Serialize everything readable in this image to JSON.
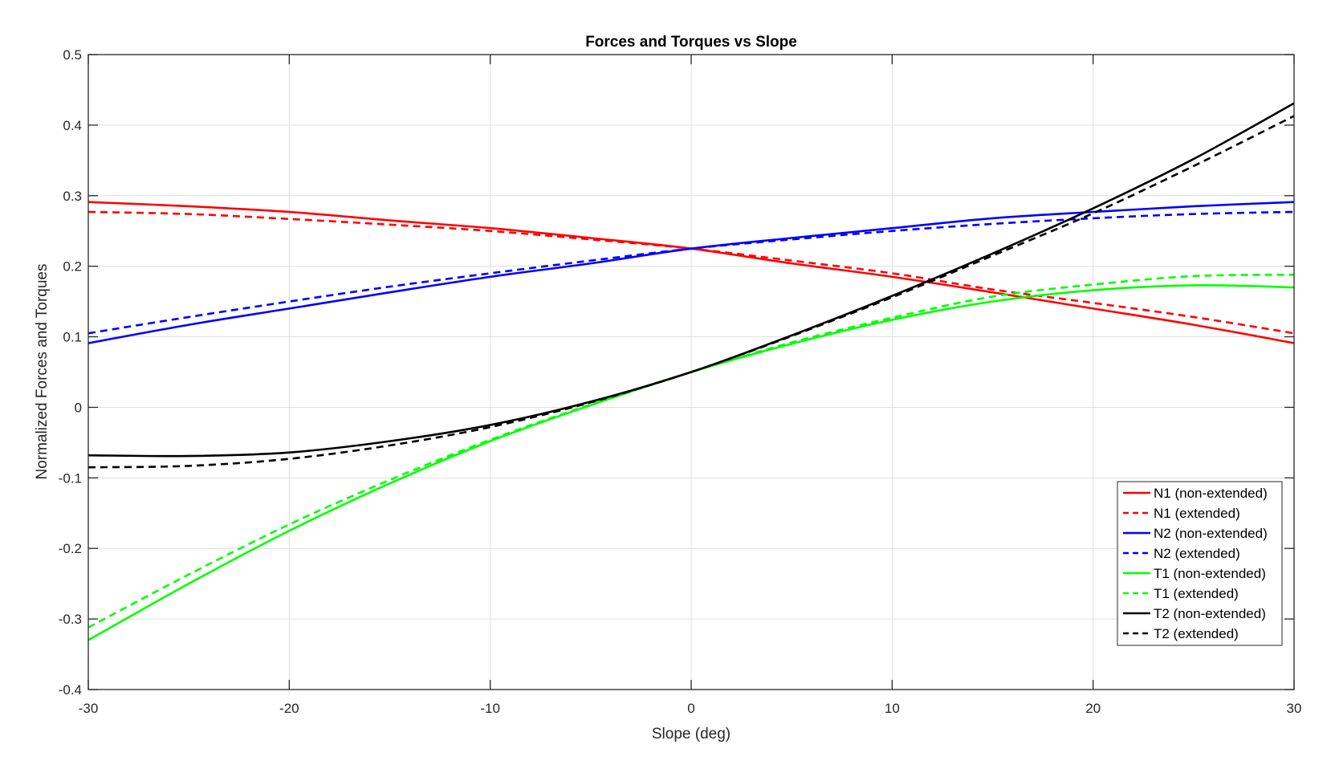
{
  "chart_data": {
    "type": "line",
    "title": "Forces and Torques vs Slope",
    "xlabel": "Slope (deg)",
    "ylabel": "Normalized Forces and Torques",
    "xlim": [
      -30,
      30
    ],
    "ylim": [
      -0.4,
      0.5
    ],
    "xticks": [
      -30,
      -20,
      -10,
      0,
      10,
      20,
      30
    ],
    "xtick_labels": [
      "-30",
      "-20",
      "-10",
      "0",
      "10",
      "20",
      "30"
    ],
    "yticks": [
      -0.4,
      -0.3,
      -0.2,
      -0.1,
      0,
      0.1,
      0.2,
      0.3,
      0.4,
      0.5
    ],
    "ytick_labels": [
      "-0.4",
      "-0.3",
      "-0.2",
      "-0.1",
      "0",
      "0.1",
      "0.2",
      "0.3",
      "0.4",
      "0.5"
    ],
    "grid": true,
    "legend_position": "bottom-right",
    "x": [
      -30,
      -25,
      -20,
      -15,
      -10,
      -5,
      0,
      5,
      10,
      15,
      20,
      25,
      30
    ],
    "series": [
      {
        "name": "N1 (non-extended)",
        "color": "#ff0000",
        "dash": "solid",
        "values": [
          0.291,
          0.285,
          0.277,
          0.265,
          0.254,
          0.24,
          0.225,
          0.204,
          0.185,
          0.163,
          0.14,
          0.117,
          0.091
        ]
      },
      {
        "name": "N1 (extended)",
        "color": "#ff0000",
        "dash": "dashed",
        "values": [
          0.277,
          0.274,
          0.267,
          0.259,
          0.25,
          0.238,
          0.225,
          0.208,
          0.19,
          0.167,
          0.148,
          0.128,
          0.105
        ]
      },
      {
        "name": "N2 (non-extended)",
        "color": "#0000ff",
        "dash": "solid",
        "values": [
          0.091,
          0.117,
          0.14,
          0.163,
          0.185,
          0.204,
          0.225,
          0.24,
          0.254,
          0.268,
          0.277,
          0.285,
          0.291
        ]
      },
      {
        "name": "N2 (extended)",
        "color": "#0000ff",
        "dash": "dashed",
        "values": [
          0.105,
          0.128,
          0.15,
          0.171,
          0.19,
          0.208,
          0.225,
          0.238,
          0.25,
          0.26,
          0.268,
          0.274,
          0.277
        ]
      },
      {
        "name": "T1 (non-extended)",
        "color": "#00ff00",
        "dash": "solid",
        "values": [
          -0.33,
          -0.25,
          -0.175,
          -0.108,
          -0.048,
          0.003,
          0.05,
          0.09,
          0.124,
          0.15,
          0.166,
          0.173,
          0.17
        ]
      },
      {
        "name": "T1 (extended)",
        "color": "#00ff00",
        "dash": "dashed",
        "values": [
          -0.312,
          -0.237,
          -0.166,
          -0.103,
          -0.046,
          0.004,
          0.05,
          0.092,
          0.127,
          0.157,
          0.174,
          0.186,
          0.188
        ]
      },
      {
        "name": "T2 (non-extended)",
        "color": "#000000",
        "dash": "solid",
        "values": [
          -0.068,
          -0.069,
          -0.064,
          -0.048,
          -0.025,
          0.008,
          0.05,
          0.102,
          0.158,
          0.218,
          0.282,
          0.352,
          0.431
        ]
      },
      {
        "name": "T2 (extended)",
        "color": "#000000",
        "dash": "dashed",
        "values": [
          -0.085,
          -0.083,
          -0.073,
          -0.054,
          -0.028,
          0.007,
          0.05,
          0.101,
          0.156,
          0.215,
          0.275,
          0.342,
          0.413
        ]
      }
    ]
  }
}
